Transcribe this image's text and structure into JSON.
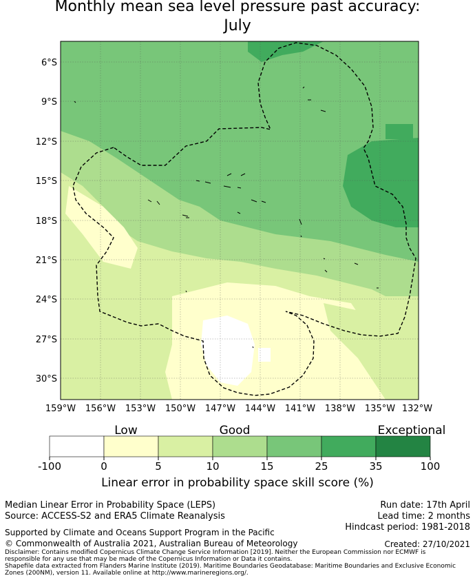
{
  "title": {
    "line1": "Monthly mean sea level pressure past accuracy:",
    "line2": "July"
  },
  "map": {
    "lat_labels": [
      "6°S",
      "9°S",
      "12°S",
      "15°S",
      "18°S",
      "21°S",
      "24°S",
      "27°S",
      "30°S"
    ],
    "lon_labels": [
      "159°W",
      "156°W",
      "153°W",
      "150°W",
      "147°W",
      "144°W",
      "141°W",
      "138°W",
      "135°W",
      "132°W"
    ],
    "colors": {
      "c1": "#ffffff",
      "c2": "#ffffcc",
      "c3": "#d9f0a3",
      "c4": "#addd8e",
      "c5": "#78c679",
      "c6": "#41ab5d",
      "c7": "#238443"
    },
    "boundary_style": "dashed"
  },
  "colorbar": {
    "category_labels": [
      "Low",
      "Good",
      "Exceptional"
    ],
    "tick_labels": [
      "-100",
      "0",
      "5",
      "10",
      "15",
      "25",
      "35",
      "100"
    ],
    "xlabel": "Linear error in probability space skill score (%)"
  },
  "footer": {
    "method": "Median Linear Error in Probability Space (LEPS)",
    "source": "Source: ACCESS-S2 and ERA5 Climate Reanalysis",
    "run_date": "Run date: 17th April",
    "lead_time": "Lead time: 2 months",
    "hindcast": "Hindcast period: 1981-2018",
    "support": "Supported by Climate and Oceans Support Program in the Pacific",
    "copyright": "© Commonwealth of Australia 2021, Australian Bureau of Meteorology",
    "created": "Created: 27/10/2021",
    "disclaimer1": "Disclaimer: Contains modified Copernicus Climate Change Service Information [2019]. Neither the European Commission nor ECMWF is",
    "disclaimer2": "responsible for any use that may be made of the Copernicus Information or Data it contains.",
    "disclaimer3": "Shapefile data extracted from Flanders Marine Institute (2019). Maritime Boundaries Geodatabase: Maritime Boundaries and Exclusive Economic",
    "disclaimer4": "Zones (200NM), version 11. Available online at http://www.marineregions.org/."
  }
}
